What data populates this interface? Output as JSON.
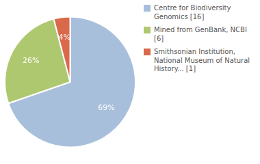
{
  "chart_data": {
    "type": "pie",
    "categories": [
      "Centre for Biodiversity\nGenomics [16]",
      "Mined from GenBank, NCBI [6]",
      "Smithsonian Institution,\nNational Museum of Natural\nHistory... [1]"
    ],
    "values": [
      69,
      26,
      4
    ],
    "value_labels": [
      "69%",
      "26%",
      "4%"
    ],
    "colors": [
      "#a8bfdb",
      "#aec870",
      "#d9694a"
    ],
    "data_labels": true,
    "legend": "right"
  }
}
